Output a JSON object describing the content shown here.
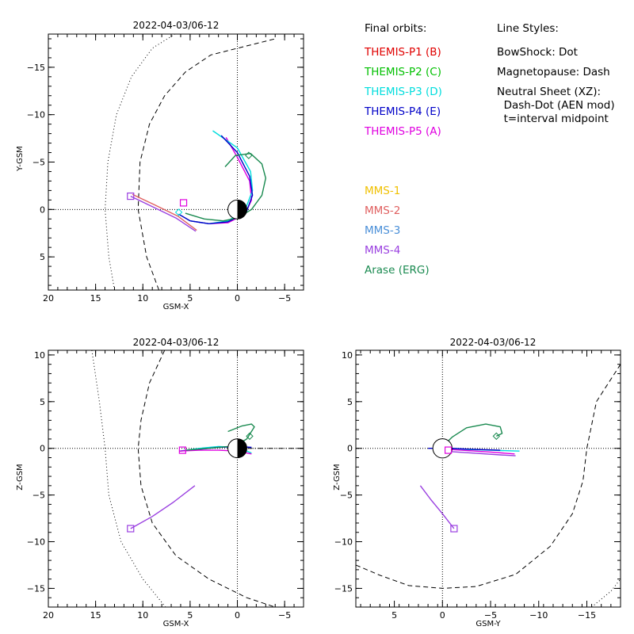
{
  "legend": {
    "header_orbits": "Final orbits:",
    "header_styles": "Line Styles:",
    "probes": [
      {
        "label": "THEMIS-P1 (B)",
        "color": "#e00000"
      },
      {
        "label": "THEMIS-P2 (C)",
        "color": "#00c000"
      },
      {
        "label": "THEMIS-P3 (D)",
        "color": "#00dddd"
      },
      {
        "label": "THEMIS-P4 (E)",
        "color": "#0000c8"
      },
      {
        "label": "THEMIS-P5 (A)",
        "color": "#e000e0"
      }
    ],
    "styles": [
      "BowShock: Dot",
      "Magnetopause: Dash",
      "Neutral Sheet (XZ):",
      "  Dash-Dot (AEN mod)",
      "  t=interval midpoint"
    ],
    "mms": [
      {
        "label": "MMS-1",
        "color": "#f0c000"
      },
      {
        "label": "MMS-2",
        "color": "#e06060"
      },
      {
        "label": "MMS-3",
        "color": "#4a8fd8"
      },
      {
        "label": "MMS-4",
        "color": "#9a40e0"
      },
      {
        "label": "Arase (ERG)",
        "color": "#1a8a50"
      }
    ]
  },
  "chart_data": [
    {
      "type": "scatter",
      "title": "2022-04-03/06-12",
      "xlabel": "GSM-X",
      "ylabel": "Y-GSM",
      "xlim": [
        20,
        -7
      ],
      "ylim": [
        8.5,
        -18.5
      ],
      "xticks": [
        20,
        15,
        10,
        5,
        0,
        -5
      ],
      "yticks": [
        -15,
        -10,
        -5,
        0,
        5
      ],
      "series": [
        {
          "color": "#000000",
          "style": "dot",
          "points": [
            [
              13,
              8.5
            ],
            [
              13.6,
              5
            ],
            [
              14,
              0
            ],
            [
              13.7,
              -5
            ],
            [
              12.8,
              -10
            ],
            [
              11.2,
              -14
            ],
            [
              9,
              -17
            ],
            [
              6.6,
              -18.5
            ]
          ]
        },
        {
          "color": "#000000",
          "style": "dash",
          "points": [
            [
              8.3,
              8.5
            ],
            [
              9.6,
              5
            ],
            [
              10.5,
              0
            ],
            [
              10.3,
              -5
            ],
            [
              9.3,
              -9
            ],
            [
              7.7,
              -12
            ],
            [
              5.5,
              -14.5
            ],
            [
              2.8,
              -16.3
            ],
            [
              0,
              -17
            ],
            [
              -4,
              -18
            ]
          ]
        },
        {
          "color": "#e000e0",
          "points": [
            [
              6.2,
              0.5
            ],
            [
              5,
              1.2
            ],
            [
              3,
              1.5
            ],
            [
              1,
              1.4
            ],
            [
              -0.8,
              0.5
            ],
            [
              -1.5,
              -1
            ],
            [
              -1.3,
              -3
            ],
            [
              0,
              -5.5
            ],
            [
              1.2,
              -7.6
            ]
          ]
        },
        {
          "color": "#00dddd",
          "points": [
            [
              6.2,
              0.5
            ],
            [
              5,
              1.2
            ],
            [
              3,
              1.5
            ],
            [
              1,
              1.2
            ],
            [
              -0.8,
              0.1
            ],
            [
              -1.6,
              -2
            ],
            [
              -1.4,
              -4
            ],
            [
              0,
              -6.5
            ],
            [
              2.6,
              -8.3
            ]
          ]
        },
        {
          "color": "#0000c8",
          "points": [
            [
              6.2,
              0.5
            ],
            [
              5,
              1.2
            ],
            [
              3,
              1.5
            ],
            [
              1,
              1.3
            ],
            [
              -0.9,
              0.4
            ],
            [
              -1.6,
              -1.5
            ],
            [
              -1.3,
              -3.5
            ],
            [
              0,
              -6
            ],
            [
              1.7,
              -7.8
            ]
          ]
        },
        {
          "color": "#1a8a50",
          "points": [
            [
              5.5,
              0.4
            ],
            [
              3.5,
              1
            ],
            [
              1.5,
              1.2
            ],
            [
              0,
              0.9
            ],
            [
              -1.5,
              0
            ],
            [
              -2.6,
              -1.5
            ],
            [
              -3,
              -3.3
            ],
            [
              -2.6,
              -4.8
            ],
            [
              -1.4,
              -5.9
            ],
            [
              0.2,
              -5.7
            ],
            [
              1.3,
              -4.5
            ]
          ]
        },
        {
          "color": "#9a40e0",
          "points": [
            [
              11.3,
              -1.4
            ],
            [
              9,
              -0.3
            ],
            [
              6.5,
              0.9
            ],
            [
              4.4,
              2.3
            ]
          ]
        },
        {
          "color": "#e06060",
          "points": [
            [
              11.1,
              -1.6
            ],
            [
              8.8,
              -0.5
            ],
            [
              6.3,
              0.7
            ],
            [
              4.3,
              2.2
            ]
          ]
        }
      ],
      "markers": [
        {
          "type": "square",
          "color": "#9a40e0",
          "x": 11.3,
          "y": -1.4
        },
        {
          "type": "square",
          "color": "#e000e0",
          "x": 5.7,
          "y": -0.7
        },
        {
          "type": "diamond",
          "color": "#00dddd",
          "x": 6.2,
          "y": 0.3
        },
        {
          "type": "diamond",
          "color": "#1a8a50",
          "x": -1.2,
          "y": -5.7
        }
      ]
    },
    {
      "type": "scatter",
      "title": "2022-04-03/06-12",
      "xlabel": "GSM-X",
      "ylabel": "Z-GSM",
      "xlim": [
        20,
        -7
      ],
      "ylim": [
        -17,
        10.5
      ],
      "xticks": [
        20,
        15,
        10,
        5,
        0,
        -5
      ],
      "yticks": [
        10,
        5,
        0,
        -5,
        -10,
        -15
      ],
      "series": [
        {
          "color": "#000000",
          "style": "dot",
          "points": [
            [
              15.4,
              10.5
            ],
            [
              14.6,
              5
            ],
            [
              14,
              0
            ],
            [
              13.6,
              -5
            ],
            [
              12.3,
              -10
            ],
            [
              10,
              -14
            ],
            [
              7.6,
              -17
            ]
          ]
        },
        {
          "color": "#000000",
          "style": "dash",
          "points": [
            [
              7.7,
              10.5
            ],
            [
              9.3,
              7
            ],
            [
              10.2,
              3
            ],
            [
              10.5,
              0
            ],
            [
              10.2,
              -4
            ],
            [
              9,
              -8
            ],
            [
              6.5,
              -11.5
            ],
            [
              3,
              -14
            ],
            [
              -1,
              -16
            ],
            [
              -4,
              -17
            ]
          ]
        },
        {
          "color": "#000000",
          "style": "dashdot",
          "points": [
            [
              0,
              0
            ],
            [
              -3,
              0
            ],
            [
              -7,
              0
            ]
          ]
        },
        {
          "color": "#9a40e0",
          "points": [
            [
              11.3,
              -8.6
            ],
            [
              9,
              -7.3
            ],
            [
              6.8,
              -5.8
            ],
            [
              4.5,
              -4
            ]
          ]
        },
        {
          "color": "#00dddd",
          "points": [
            [
              6.1,
              -0.3
            ],
            [
              4,
              0
            ],
            [
              2,
              0.2
            ],
            [
              0,
              0.1
            ],
            [
              -1.5,
              -0.5
            ]
          ]
        },
        {
          "color": "#0000c8",
          "points": [
            [
              6.1,
              -0.3
            ],
            [
              4,
              -0.1
            ],
            [
              2,
              0.1
            ],
            [
              0,
              0.2
            ],
            [
              -1.5,
              0.1
            ]
          ]
        },
        {
          "color": "#e000e0",
          "points": [
            [
              6.1,
              -0.3
            ],
            [
              4,
              -0.2
            ],
            [
              2,
              -0.2
            ],
            [
              0,
              -0.3
            ],
            [
              -1.5,
              -0.6
            ]
          ]
        },
        {
          "color": "#1a8a50",
          "points": [
            [
              5.5,
              -0.2
            ],
            [
              3,
              0
            ],
            [
              1,
              0.2
            ],
            [
              0,
              0.4
            ],
            [
              -1,
              1
            ],
            [
              -1.8,
              2.3
            ],
            [
              -1.5,
              2.6
            ],
            [
              -0.5,
              2.4
            ],
            [
              1,
              1.8
            ]
          ]
        }
      ],
      "markers": [
        {
          "type": "square",
          "color": "#9a40e0",
          "x": 11.3,
          "y": -8.6
        },
        {
          "type": "square",
          "color": "#e000e0",
          "x": 5.8,
          "y": -0.2
        },
        {
          "type": "diamond",
          "color": "#1a8a50",
          "x": -1.3,
          "y": 1.3
        }
      ]
    },
    {
      "type": "scatter",
      "title": "2022-04-03/06-12",
      "xlabel": "GSM-Y",
      "ylabel": "Z-GSM",
      "xlim": [
        9,
        -18.5
      ],
      "ylim": [
        -17,
        10.5
      ],
      "xticks": [
        5,
        0,
        -5,
        -10,
        -15
      ],
      "yticks": [
        10,
        5,
        0,
        -5,
        -10,
        -15
      ],
      "series": [
        {
          "color": "#000000",
          "style": "dot",
          "points": [
            [
              -15.5,
              -17
            ],
            [
              -17.5,
              -15.3
            ],
            [
              -18.5,
              -14
            ]
          ]
        },
        {
          "color": "#000000",
          "style": "dash",
          "points": [
            [
              -18.5,
              9
            ],
            [
              -16,
              5
            ],
            [
              -15,
              0
            ],
            [
              -14.6,
              -3.5
            ],
            [
              -13.5,
              -7
            ],
            [
              -11.2,
              -10.5
            ],
            [
              -7.6,
              -13.5
            ],
            [
              -3.5,
              -14.8
            ],
            [
              0,
              -15
            ],
            [
              3.5,
              -14.7
            ],
            [
              6.5,
              -13.6
            ],
            [
              9,
              -12.5
            ]
          ]
        },
        {
          "color": "#9a40e0",
          "points": [
            [
              2.3,
              -4
            ],
            [
              1.2,
              -5.5
            ],
            [
              0,
              -7
            ],
            [
              -1.2,
              -8.6
            ]
          ]
        },
        {
          "color": "#00dddd",
          "points": [
            [
              1,
              0
            ],
            [
              -2,
              -0.1
            ],
            [
              -5,
              -0.2
            ],
            [
              -8,
              -0.3
            ]
          ]
        },
        {
          "color": "#0000c8",
          "points": [
            [
              1.5,
              0
            ],
            [
              -1,
              0
            ],
            [
              -3,
              -0.1
            ],
            [
              -6,
              -0.2
            ]
          ]
        },
        {
          "color": "#e000e0",
          "points": [
            [
              1,
              0
            ],
            [
              -2,
              -0.2
            ],
            [
              -5,
              -0.4
            ],
            [
              -7.5,
              -0.6
            ]
          ]
        },
        {
          "color": "#9a40e0",
          "points": [
            [
              0,
              -0.3
            ],
            [
              -3,
              -0.5
            ],
            [
              -6,
              -0.7
            ],
            [
              -7.6,
              -0.8
            ]
          ]
        },
        {
          "color": "#1a8a50",
          "points": [
            [
              0,
              0.2
            ],
            [
              -1,
              1.2
            ],
            [
              -2.5,
              2.2
            ],
            [
              -4.5,
              2.6
            ],
            [
              -6,
              2.3
            ],
            [
              -6.2,
              1.6
            ],
            [
              -5.6,
              1.3
            ]
          ]
        }
      ],
      "markers": [
        {
          "type": "square",
          "color": "#9a40e0",
          "x": -1.2,
          "y": -8.6
        },
        {
          "type": "square",
          "color": "#e000e0",
          "x": -0.6,
          "y": -0.2
        },
        {
          "type": "diamond",
          "color": "#1a8a50",
          "x": -5.6,
          "y": 1.3
        }
      ]
    }
  ]
}
